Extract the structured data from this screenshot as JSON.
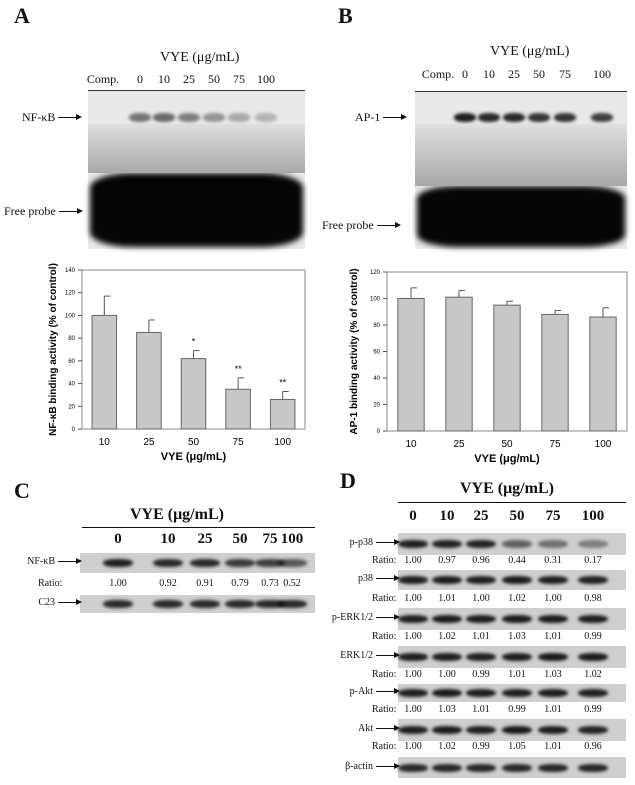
{
  "panels": {
    "A": {
      "label": "A",
      "header": "VYE (μg/mL)",
      "lanes": [
        "Comp.",
        "0",
        "10",
        "25",
        "50",
        "75",
        "100"
      ],
      "band_label": "NF-κB",
      "probe_label": "Free probe"
    },
    "B": {
      "label": "B",
      "header": "VYE (μg/mL)",
      "lanes": [
        "Comp.",
        "0",
        "10",
        "25",
        "50",
        "75",
        "100"
      ],
      "band_label": "AP-1",
      "probe_label": "Free probe"
    },
    "C": {
      "label": "C",
      "header": "VYE (μg/mL)",
      "lanes": [
        "0",
        "10",
        "25",
        "50",
        "75",
        "100"
      ],
      "rows": [
        {
          "name": "NF-κB",
          "ratio_label": "Ratio:",
          "ratios": [
            "1.00",
            "0.92",
            "0.91",
            "0.79",
            "0.73",
            "0.52"
          ]
        },
        {
          "name": "C23"
        }
      ]
    },
    "D": {
      "label": "D",
      "header": "VYE (μg/mL)",
      "lanes": [
        "0",
        "10",
        "25",
        "50",
        "75",
        "100"
      ],
      "rows": [
        {
          "name": "p-p38",
          "ratio_label": "Ratio:",
          "ratios": [
            "1.00",
            "0.97",
            "0.96",
            "0.44",
            "0.31",
            "0.17"
          ]
        },
        {
          "name": "p38",
          "ratio_label": "Ratio:",
          "ratios": [
            "1.00",
            "1.01",
            "1.00",
            "1.02",
            "1.00",
            "0.98"
          ]
        },
        {
          "name": "p-ERK1/2",
          "ratio_label": "Ratio:",
          "ratios": [
            "1.00",
            "1.02",
            "1.01",
            "1.03",
            "1.01",
            "0.99"
          ]
        },
        {
          "name": "ERK1/2",
          "ratio_label": "Ratio:",
          "ratios": [
            "1.00",
            "1.00",
            "0.99",
            "1.01",
            "1.03",
            "1.02"
          ]
        },
        {
          "name": "p-Akt",
          "ratio_label": "Ratio:",
          "ratios": [
            "1.00",
            "1.03",
            "1.01",
            "0.99",
            "1.01",
            "0.99"
          ]
        },
        {
          "name": "Akt",
          "ratio_label": "Ratio:",
          "ratios": [
            "1.00",
            "1.02",
            "0.99",
            "1.05",
            "1.01",
            "0.96"
          ]
        },
        {
          "name": "β-actin"
        }
      ]
    }
  },
  "chart_data": [
    {
      "type": "bar",
      "categories": [
        "10",
        "25",
        "50",
        "75",
        "100"
      ],
      "values": [
        100,
        85,
        62,
        35,
        26
      ],
      "errors": [
        17,
        11,
        7,
        10,
        7
      ],
      "significance": [
        "",
        "",
        "*",
        "**",
        "**"
      ],
      "xlabel": "VYE (μg/mL)",
      "ylabel": "NF-κB binding activity (% of control)",
      "ylim": [
        0,
        140
      ],
      "yticks": [
        0,
        20,
        40,
        60,
        80,
        100,
        120,
        140
      ],
      "bar_color": "#c8c8c8",
      "grid": false
    },
    {
      "type": "bar",
      "categories": [
        "10",
        "25",
        "50",
        "75",
        "100"
      ],
      "values": [
        100,
        101,
        95,
        88,
        86
      ],
      "errors": [
        8,
        5,
        3,
        3,
        7
      ],
      "significance": [
        "",
        "",
        "",
        "",
        ""
      ],
      "xlabel": "VYE (μg/mL)",
      "ylabel": "AP-1 binding activity (% of control)",
      "ylim": [
        0,
        120
      ],
      "yticks": [
        0,
        20,
        40,
        60,
        80,
        100,
        120
      ],
      "bar_color": "#c8c8c8",
      "grid": false
    }
  ]
}
